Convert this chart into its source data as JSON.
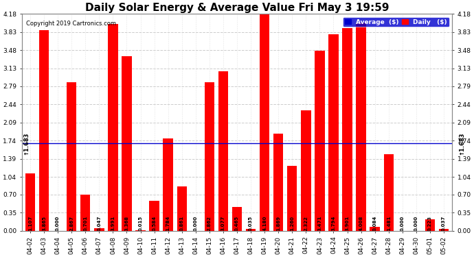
{
  "title": "Daily Solar Energy & Average Value Fri May 3 19:59",
  "copyright": "Copyright 2019 Cartronics.com",
  "categories": [
    "04-02",
    "04-03",
    "04-04",
    "04-05",
    "04-06",
    "04-07",
    "04-08",
    "04-09",
    "04-10",
    "04-11",
    "04-12",
    "04-13",
    "04-14",
    "04-15",
    "04-16",
    "04-17",
    "04-18",
    "04-19",
    "04-20",
    "04-21",
    "04-22",
    "04-23",
    "04-24",
    "04-25",
    "04-26",
    "04-27",
    "04-28",
    "04-29",
    "04-30",
    "05-01",
    "05-02"
  ],
  "values": [
    1.107,
    3.865,
    0.0,
    2.867,
    0.701,
    0.047,
    3.991,
    3.368,
    0.015,
    0.584,
    1.784,
    0.861,
    0.0,
    2.862,
    3.077,
    0.465,
    0.035,
    4.18,
    1.869,
    1.26,
    2.322,
    3.471,
    3.794,
    3.901,
    4.008,
    0.084,
    1.481,
    0.0,
    0.0,
    0.223,
    0.037
  ],
  "average_line": 1.683,
  "bar_color": "#ff0000",
  "avg_line_color": "#0000cc",
  "background_color": "#ffffff",
  "grid_color": "#cccccc",
  "ylim": [
    0,
    4.18
  ],
  "yticks": [
    0.0,
    0.35,
    0.7,
    1.04,
    1.39,
    1.74,
    2.09,
    2.44,
    2.79,
    3.13,
    3.48,
    3.83,
    4.18
  ],
  "title_fontsize": 11,
  "tick_fontsize": 6.5,
  "avg_label": "1.683",
  "legend_avg_bg": "#0000cc",
  "legend_daily_color": "#ff0000",
  "legend_avg_text": "Average  ($)",
  "legend_daily_text": "Daily   ($)"
}
